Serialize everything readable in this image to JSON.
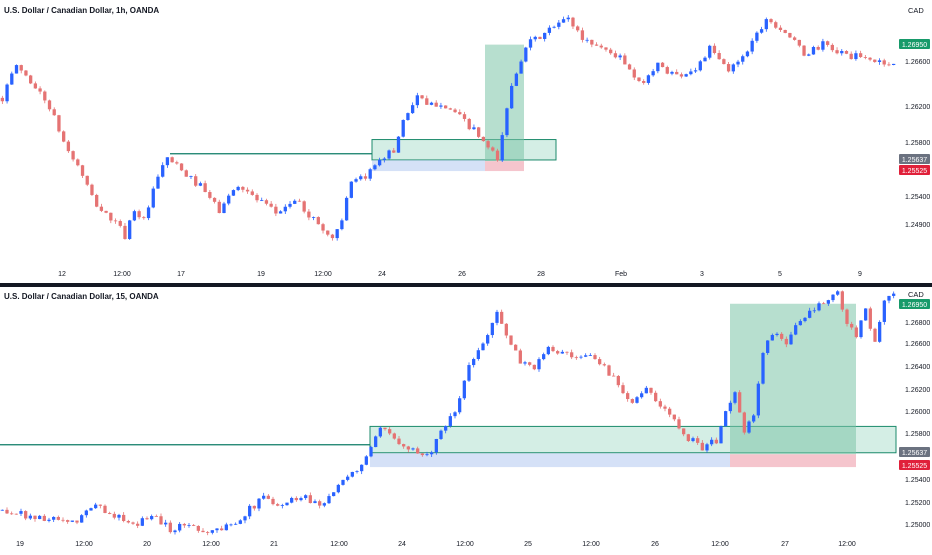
{
  "colors": {
    "up": "#2962ff",
    "down": "#e57373",
    "level_line": "#0e7c66",
    "zone_fill": "#b7e2d3",
    "zone_stroke": "#1b8a6b",
    "target_fill": "#7cc4a8",
    "stop_fill": "#f2b6c0",
    "entry_band": "#b9cdf2",
    "badge_green": "#179a6a",
    "badge_gray": "#6b7280",
    "badge_red": "#e0203a",
    "divider": "#131722",
    "axis_text": "#131722"
  },
  "chart_data": [
    {
      "type": "candlestick",
      "title": "U.S. Dollar / Canadian Dollar, 1h, OANDA",
      "currency": "CAD",
      "ylim": [
        1.245,
        1.2725
      ],
      "y_ticks": [
        "1.26600",
        "1.26200",
        "1.25800",
        "1.25400",
        "1.24900"
      ],
      "x_ticks": [
        "12",
        "12:00",
        "17",
        "19",
        "12:00",
        "24",
        "26",
        "28",
        "Feb",
        "3",
        "5",
        "7",
        "9"
      ],
      "price_badges": [
        {
          "label": "1.26950",
          "kind": "target"
        },
        {
          "label": "1.25637",
          "kind": "entry"
        },
        {
          "label": "1.25525",
          "kind": "stop"
        }
      ],
      "horizontal_level": 1.2572,
      "demand_zone": [
        1.2565,
        1.2588
      ],
      "position": {
        "entry": 1.25637,
        "stop": 1.25525,
        "target": 1.2695
      },
      "price_path": [
        [
          0,
          1.2635
        ],
        [
          3,
          1.2672
        ],
        [
          5,
          1.266
        ],
        [
          8,
          1.264
        ],
        [
          10,
          1.2625
        ],
        [
          13,
          1.2585
        ],
        [
          17,
          1.2548
        ],
        [
          19,
          1.2522
        ],
        [
          21,
          1.2508
        ],
        [
          24,
          1.2494
        ],
        [
          26,
          1.248
        ],
        [
          28,
          1.251
        ],
        [
          30,
          1.2496
        ],
        [
          33,
          1.2545
        ],
        [
          35,
          1.2568
        ],
        [
          38,
          1.2552
        ],
        [
          42,
          1.2535
        ],
        [
          46,
          1.2508
        ],
        [
          50,
          1.2538
        ],
        [
          54,
          1.252
        ],
        [
          58,
          1.2505
        ],
        [
          62,
          1.252
        ],
        [
          66,
          1.2498
        ],
        [
          70,
          1.2476
        ],
        [
          72,
          1.25
        ],
        [
          74,
          1.2538
        ],
        [
          77,
          1.2545
        ],
        [
          80,
          1.2568
        ],
        [
          83,
          1.2575
        ],
        [
          85,
          1.261
        ],
        [
          88,
          1.2638
        ],
        [
          90,
          1.2625
        ],
        [
          93,
          1.263
        ],
        [
          96,
          1.2618
        ],
        [
          100,
          1.2598
        ],
        [
          103,
          1.2578
        ],
        [
          105,
          1.2565
        ],
        [
          108,
          1.265
        ],
        [
          111,
          1.2695
        ],
        [
          113,
          1.27
        ],
        [
          117,
          1.2715
        ],
        [
          120,
          1.2725
        ],
        [
          123,
          1.2702
        ],
        [
          127,
          1.2692
        ],
        [
          131,
          1.268
        ],
        [
          135,
          1.265
        ],
        [
          139,
          1.2672
        ],
        [
          143,
          1.266
        ],
        [
          147,
          1.2668
        ],
        [
          150,
          1.269
        ],
        [
          154,
          1.2665
        ],
        [
          158,
          1.269
        ],
        [
          162,
          1.2725
        ],
        [
          166,
          1.271
        ],
        [
          170,
          1.2684
        ],
        [
          174,
          1.2695
        ],
        [
          178,
          1.2685
        ],
        [
          182,
          1.268
        ],
        [
          186,
          1.2676
        ],
        [
          189,
          1.2672
        ]
      ]
    },
    {
      "type": "candlestick",
      "title": "U.S. Dollar / Canadian Dollar, 15, OANDA",
      "currency": "CAD",
      "ylim": [
        1.2495,
        1.2707
      ],
      "y_ticks": [
        "1.26800",
        "1.26600",
        "1.26400",
        "1.26200",
        "1.26000",
        "1.25800",
        "1.25400",
        "1.25200",
        "1.25000"
      ],
      "x_ticks": [
        "19",
        "12:00",
        "20",
        "12:00",
        "21",
        "12:00",
        "24",
        "12:00",
        "25",
        "12:00",
        "26",
        "12:00",
        "27",
        "12:00"
      ],
      "price_badges": [
        {
          "label": "1.26950",
          "kind": "target"
        },
        {
          "label": "1.25637",
          "kind": "entry"
        },
        {
          "label": "1.25525",
          "kind": "stop"
        }
      ],
      "horizontal_level": 1.2572,
      "demand_zone": [
        1.2565,
        1.2588
      ],
      "position": {
        "entry": 1.25637,
        "stop": 1.25525,
        "target": 1.2695
      },
      "price_path": [
        [
          0,
          1.2515
        ],
        [
          8,
          1.2508
        ],
        [
          15,
          1.2503
        ],
        [
          20,
          1.2519
        ],
        [
          24,
          1.2511
        ],
        [
          28,
          1.25
        ],
        [
          32,
          1.2512
        ],
        [
          36,
          1.2498
        ],
        [
          40,
          1.2503
        ],
        [
          44,
          1.2496
        ],
        [
          48,
          1.25
        ],
        [
          52,
          1.2512
        ],
        [
          56,
          1.2526
        ],
        [
          60,
          1.252
        ],
        [
          64,
          1.2528
        ],
        [
          68,
          1.252
        ],
        [
          72,
          1.2535
        ],
        [
          76,
          1.255
        ],
        [
          79,
          1.2568
        ],
        [
          81,
          1.2585
        ],
        [
          84,
          1.2578
        ],
        [
          88,
          1.2568
        ],
        [
          91,
          1.2562
        ],
        [
          93,
          1.2575
        ],
        [
          95,
          1.2588
        ],
        [
          97,
          1.26
        ],
        [
          100,
          1.264
        ],
        [
          103,
          1.266
        ],
        [
          106,
          1.269
        ],
        [
          108,
          1.2665
        ],
        [
          111,
          1.2645
        ],
        [
          114,
          1.264
        ],
        [
          117,
          1.2655
        ],
        [
          120,
          1.2652
        ],
        [
          123,
          1.2645
        ],
        [
          126,
          1.265
        ],
        [
          129,
          1.264
        ],
        [
          132,
          1.2625
        ],
        [
          135,
          1.261
        ],
        [
          138,
          1.262
        ],
        [
          141,
          1.2605
        ],
        [
          144,
          1.2595
        ],
        [
          147,
          1.2578
        ],
        [
          150,
          1.257
        ],
        [
          153,
          1.2575
        ],
        [
          155,
          1.26
        ],
        [
          157,
          1.262
        ],
        [
          159,
          1.258
        ],
        [
          161,
          1.26
        ],
        [
          163,
          1.265
        ],
        [
          165,
          1.267
        ],
        [
          168,
          1.2662
        ],
        [
          171,
          1.268
        ],
        [
          174,
          1.269
        ],
        [
          177,
          1.2698
        ],
        [
          179,
          1.2705
        ],
        [
          181,
          1.2675
        ],
        [
          183,
          1.2668
        ],
        [
          185,
          1.269
        ],
        [
          187,
          1.2662
        ],
        [
          189,
          1.2695
        ],
        [
          191,
          1.2705
        ]
      ]
    }
  ]
}
